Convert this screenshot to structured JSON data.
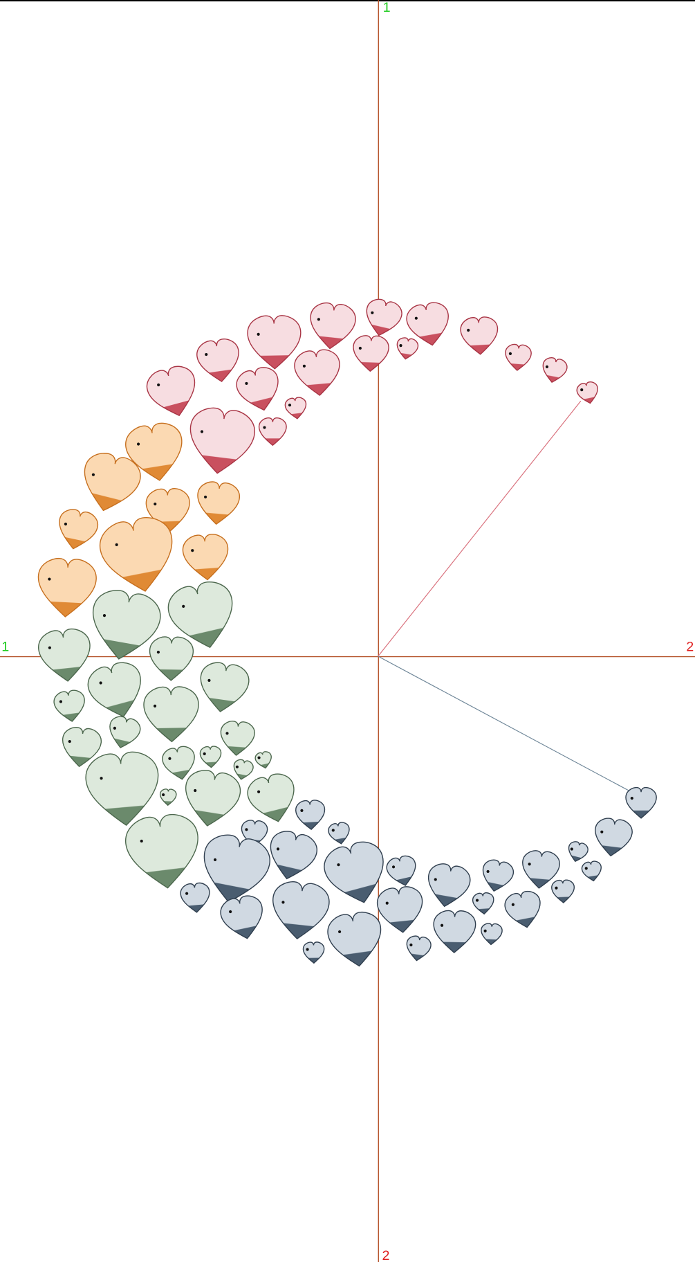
{
  "axis_labels": {
    "top": "1",
    "left": "1",
    "right": "2",
    "bottom": "2"
  }
}
